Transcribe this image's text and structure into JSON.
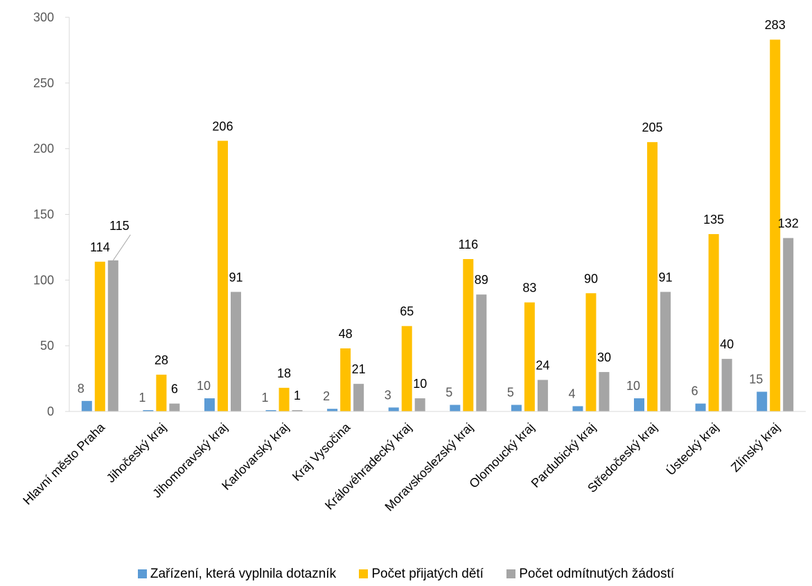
{
  "chart_data": {
    "type": "bar",
    "categories": [
      "Hlavní město Praha",
      "Jihočeský kraj",
      "Jihomoravský kraj",
      "Karlovarský kraj",
      "Kraj Vysočina",
      "Královéhradecký kraj",
      "Moravskoslezský kraj",
      "Olomoucký kraj",
      "Pardubický kraj",
      "Středočeský kraj",
      "Ústecký kraj",
      "Zlínský kraj"
    ],
    "series": [
      {
        "name": "Zařízení, která vyplnila dotazník",
        "color": "#5b9bd5",
        "values": [
          8,
          1,
          10,
          1,
          2,
          3,
          5,
          5,
          4,
          10,
          6,
          15
        ]
      },
      {
        "name": "Počet přijatých dětí",
        "color": "#ffc000",
        "values": [
          114,
          28,
          206,
          18,
          48,
          65,
          116,
          83,
          90,
          205,
          135,
          283
        ]
      },
      {
        "name": "Počet odmítnutých žádostí",
        "color": "#a5a5a5",
        "values": [
          115,
          6,
          91,
          1,
          21,
          10,
          89,
          24,
          30,
          91,
          40,
          132
        ]
      }
    ],
    "y_ticks": [
      "0",
      "50",
      "100",
      "150",
      "200",
      "250",
      "300"
    ],
    "ylim": [
      0,
      300
    ],
    "grid": false,
    "legend_position": "bottom",
    "title": "",
    "xlabel": "",
    "ylabel": ""
  }
}
